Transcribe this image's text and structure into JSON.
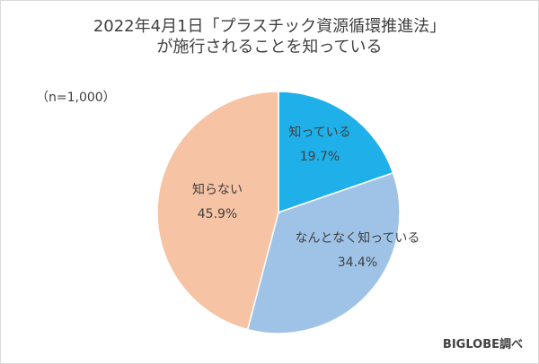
{
  "chart_data": {
    "type": "pie",
    "title_line1": "2022年4月1日「プラスチック資源循環推進法」",
    "title_line2": "が施行されることを知っている",
    "sample_size": "（n=1,000）",
    "slices": [
      {
        "label": "知っている",
        "value": 19.7,
        "value_label": "19.7%",
        "color": "#1fb0ea"
      },
      {
        "label": "なんとなく知っている",
        "value": 34.4,
        "value_label": "34.4%",
        "color": "#9fc3e7"
      },
      {
        "label": "知らない",
        "value": 45.9,
        "value_label": "45.9%",
        "color": "#f6c3a4"
      }
    ]
  },
  "credit": "BIGLOBE調べ"
}
